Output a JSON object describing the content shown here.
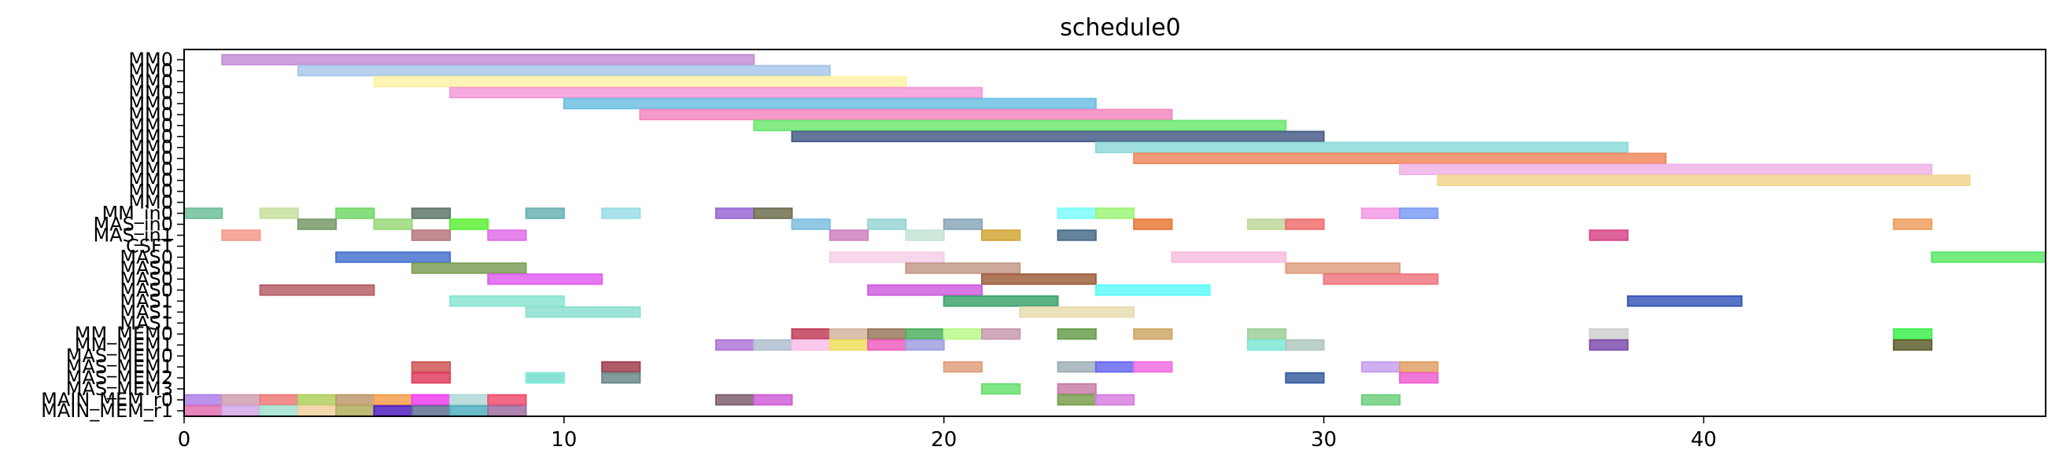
{
  "chart_data": {
    "type": "gantt",
    "title": "schedule0",
    "xlim": [
      0,
      49
    ],
    "xticks": [
      0,
      10,
      20,
      30,
      40
    ],
    "grid": false,
    "rows": [
      "MM0",
      "MM0",
      "MM0",
      "MM0",
      "MM0",
      "MM0",
      "MM0",
      "MM0",
      "MM0",
      "MM0",
      "MM0",
      "MM0",
      "MM0",
      "MM0",
      "MM_in0",
      "MAS_in0",
      "MAS_in1",
      "CSFT",
      "MAS0",
      "MAS0",
      "MAS0",
      "MAS0",
      "MAS1",
      "MAS1",
      "MAS1",
      "MM_MEM0",
      "MM_MEM1",
      "MAS_MEM0",
      "MAS_MEM1",
      "MAS_MEM2",
      "MAS_MEM3",
      "MAIN_MEM_r0",
      "MAIN_MEM_r1"
    ],
    "bars": [
      {
        "row": 0,
        "start": 1,
        "end": 15,
        "color": "#c58fd6"
      },
      {
        "row": 1,
        "start": 3,
        "end": 17,
        "color": "#a9c8ea"
      },
      {
        "row": 2,
        "start": 5,
        "end": 19,
        "color": "#fff2a8"
      },
      {
        "row": 3,
        "start": 7,
        "end": 21,
        "color": "#f59ad8"
      },
      {
        "row": 4,
        "start": 10,
        "end": 24,
        "color": "#6ec1e4"
      },
      {
        "row": 5,
        "start": 12,
        "end": 26,
        "color": "#f58ac0"
      },
      {
        "row": 6,
        "start": 15,
        "end": 29,
        "color": "#6ee870"
      },
      {
        "row": 7,
        "start": 16,
        "end": 30,
        "color": "#4a5e8a"
      },
      {
        "row": 8,
        "start": 24,
        "end": 38,
        "color": "#8fd9d9"
      },
      {
        "row": 9,
        "start": 25,
        "end": 39,
        "color": "#f08a60"
      },
      {
        "row": 10,
        "start": 32,
        "end": 46,
        "color": "#f0b4e8"
      },
      {
        "row": 11,
        "start": 33,
        "end": 47,
        "color": "#f3d590"
      },
      {
        "row": 14,
        "start": 0,
        "end": 1,
        "color": "#6fbf9a"
      },
      {
        "row": 14,
        "start": 2,
        "end": 3,
        "color": "#c8e2a0"
      },
      {
        "row": 14,
        "start": 4,
        "end": 5,
        "color": "#74d96a"
      },
      {
        "row": 14,
        "start": 6,
        "end": 7,
        "color": "#607868"
      },
      {
        "row": 14,
        "start": 9,
        "end": 10,
        "color": "#6ab4b4"
      },
      {
        "row": 14,
        "start": 11,
        "end": 12,
        "color": "#9adde6"
      },
      {
        "row": 14,
        "start": 14,
        "end": 15,
        "color": "#9a6ad6"
      },
      {
        "row": 14,
        "start": 15,
        "end": 16,
        "color": "#707050"
      },
      {
        "row": 14,
        "start": 23,
        "end": 24,
        "color": "#7efcfc"
      },
      {
        "row": 14,
        "start": 24,
        "end": 25,
        "color": "#9ef57a"
      },
      {
        "row": 14,
        "start": 31,
        "end": 32,
        "color": "#f59ae6"
      },
      {
        "row": 14,
        "start": 32,
        "end": 33,
        "color": "#7e9cf2"
      },
      {
        "row": 15,
        "start": 3,
        "end": 4,
        "color": "#7a9a6a"
      },
      {
        "row": 15,
        "start": 5,
        "end": 6,
        "color": "#9ad97a"
      },
      {
        "row": 15,
        "start": 7,
        "end": 8,
        "color": "#5ef03a"
      },
      {
        "row": 15,
        "start": 16,
        "end": 17,
        "color": "#7ec0e0"
      },
      {
        "row": 15,
        "start": 18,
        "end": 19,
        "color": "#9ad6d6"
      },
      {
        "row": 15,
        "start": 20,
        "end": 21,
        "color": "#8aa8b8"
      },
      {
        "row": 15,
        "start": 25,
        "end": 26,
        "color": "#ea7a3a"
      },
      {
        "row": 15,
        "start": 28,
        "end": 29,
        "color": "#c0d89a"
      },
      {
        "row": 15,
        "start": 29,
        "end": 30,
        "color": "#f07070"
      },
      {
        "row": 15,
        "start": 45,
        "end": 46,
        "color": "#f0a060"
      },
      {
        "row": 16,
        "start": 1,
        "end": 2,
        "color": "#f59a8a"
      },
      {
        "row": 16,
        "start": 6,
        "end": 7,
        "color": "#b87a80"
      },
      {
        "row": 16,
        "start": 8,
        "end": 9,
        "color": "#e070e8"
      },
      {
        "row": 16,
        "start": 17,
        "end": 18,
        "color": "#d084c0"
      },
      {
        "row": 16,
        "start": 19,
        "end": 20,
        "color": "#c4e4d4"
      },
      {
        "row": 16,
        "start": 21,
        "end": 22,
        "color": "#d4a838"
      },
      {
        "row": 16,
        "start": 23,
        "end": 24,
        "color": "#4a6e8a"
      },
      {
        "row": 16,
        "start": 37,
        "end": 38,
        "color": "#d84a8a"
      },
      {
        "row": 18,
        "start": 4,
        "end": 7,
        "color": "#4a74d0"
      },
      {
        "row": 18,
        "start": 17,
        "end": 20,
        "color": "#f4d0e8"
      },
      {
        "row": 18,
        "start": 26,
        "end": 29,
        "color": "#f8bee0"
      },
      {
        "row": 18,
        "start": 46,
        "end": 49,
        "color": "#5ee86a"
      },
      {
        "row": 19,
        "start": 6,
        "end": 9,
        "color": "#7ea05a"
      },
      {
        "row": 19,
        "start": 19,
        "end": 22,
        "color": "#c49a8a"
      },
      {
        "row": 19,
        "start": 29,
        "end": 32,
        "color": "#e0a080"
      },
      {
        "row": 20,
        "start": 8,
        "end": 11,
        "color": "#e060f0"
      },
      {
        "row": 20,
        "start": 21,
        "end": 24,
        "color": "#a06040"
      },
      {
        "row": 20,
        "start": 30,
        "end": 33,
        "color": "#f07880"
      },
      {
        "row": 21,
        "start": 2,
        "end": 5,
        "color": "#b8606a"
      },
      {
        "row": 21,
        "start": 18,
        "end": 21,
        "color": "#d060e0"
      },
      {
        "row": 21,
        "start": 24,
        "end": 27,
        "color": "#60fafa"
      },
      {
        "row": 22,
        "start": 7,
        "end": 10,
        "color": "#8ae6d0"
      },
      {
        "row": 22,
        "start": 20,
        "end": 23,
        "color": "#40a470"
      },
      {
        "row": 22,
        "start": 38,
        "end": 41,
        "color": "#3a5ab8"
      },
      {
        "row": 23,
        "start": 9,
        "end": 12,
        "color": "#8ee0d0"
      },
      {
        "row": 23,
        "start": 22,
        "end": 25,
        "color": "#e8dcb0"
      },
      {
        "row": 25,
        "start": 16,
        "end": 17,
        "color": "#c0405a"
      },
      {
        "row": 25,
        "start": 17,
        "end": 18,
        "color": "#d4b8a0"
      },
      {
        "row": 25,
        "start": 18,
        "end": 19,
        "color": "#9a7a60"
      },
      {
        "row": 25,
        "start": 19,
        "end": 20,
        "color": "#50b060"
      },
      {
        "row": 25,
        "start": 20,
        "end": 21,
        "color": "#bcfa8a"
      },
      {
        "row": 25,
        "start": 21,
        "end": 22,
        "color": "#c89ab0"
      },
      {
        "row": 25,
        "start": 23,
        "end": 24,
        "color": "#6aa050"
      },
      {
        "row": 25,
        "start": 25,
        "end": 26,
        "color": "#d0a868"
      },
      {
        "row": 25,
        "start": 28,
        "end": 29,
        "color": "#a0d09a"
      },
      {
        "row": 25,
        "start": 37,
        "end": 38,
        "color": "#d0d0d0"
      },
      {
        "row": 25,
        "start": 45,
        "end": 46,
        "color": "#40f050"
      },
      {
        "row": 26,
        "start": 14,
        "end": 15,
        "color": "#b078d8"
      },
      {
        "row": 26,
        "start": 15,
        "end": 16,
        "color": "#b0c0d0"
      },
      {
        "row": 26,
        "start": 16,
        "end": 17,
        "color": "#fac0e8"
      },
      {
        "row": 26,
        "start": 17,
        "end": 18,
        "color": "#f0e060"
      },
      {
        "row": 26,
        "start": 18,
        "end": 19,
        "color": "#f060c0"
      },
      {
        "row": 26,
        "start": 19,
        "end": 20,
        "color": "#a0a0e0"
      },
      {
        "row": 26,
        "start": 28,
        "end": 29,
        "color": "#80e8d8"
      },
      {
        "row": 26,
        "start": 29,
        "end": 30,
        "color": "#b0c8c0"
      },
      {
        "row": 26,
        "start": 37,
        "end": 38,
        "color": "#8050b0"
      },
      {
        "row": 26,
        "start": 45,
        "end": 46,
        "color": "#606030"
      },
      {
        "row": 28,
        "start": 6,
        "end": 7,
        "color": "#d05858"
      },
      {
        "row": 28,
        "start": 11,
        "end": 12,
        "color": "#a04050"
      },
      {
        "row": 28,
        "start": 20,
        "end": 21,
        "color": "#e0a080"
      },
      {
        "row": 28,
        "start": 23,
        "end": 24,
        "color": "#a0b0b8"
      },
      {
        "row": 28,
        "start": 24,
        "end": 25,
        "color": "#6a6af0"
      },
      {
        "row": 28,
        "start": 25,
        "end": 26,
        "color": "#f070e0"
      },
      {
        "row": 28,
        "start": 31,
        "end": 32,
        "color": "#c8a0f0"
      },
      {
        "row": 28,
        "start": 32,
        "end": 33,
        "color": "#e0a068"
      },
      {
        "row": 29,
        "start": 6,
        "end": 7,
        "color": "#e04060"
      },
      {
        "row": 29,
        "start": 9,
        "end": 10,
        "color": "#a08060"
      },
      {
        "row": 29,
        "start": 11,
        "end": 12,
        "color": "#6a8a88"
      },
      {
        "row": 29,
        "start": 29,
        "end": 30,
        "color": "#3a60a0"
      },
      {
        "row": 29,
        "start": 32,
        "end": 33,
        "color": "#f060d0"
      },
      {
        "row": 29,
        "start": 9,
        "end": 10,
        "color": "#80f0e0"
      },
      {
        "row": 30,
        "start": 21,
        "end": 22,
        "color": "#6ae070"
      },
      {
        "row": 30,
        "start": 23,
        "end": 24,
        "color": "#c880a8"
      },
      {
        "row": 31,
        "start": 0,
        "end": 1,
        "color": "#b080e8"
      },
      {
        "row": 31,
        "start": 1,
        "end": 2,
        "color": "#d0a0b0"
      },
      {
        "row": 31,
        "start": 2,
        "end": 3,
        "color": "#f07a7a"
      },
      {
        "row": 31,
        "start": 3,
        "end": 4,
        "color": "#b0d060"
      },
      {
        "row": 31,
        "start": 4,
        "end": 5,
        "color": "#c09a70"
      },
      {
        "row": 31,
        "start": 5,
        "end": 6,
        "color": "#f5a050"
      },
      {
        "row": 31,
        "start": 6,
        "end": 7,
        "color": "#f040f0"
      },
      {
        "row": 31,
        "start": 7,
        "end": 8,
        "color": "#b0d8d8"
      },
      {
        "row": 31,
        "start": 8,
        "end": 9,
        "color": "#f05070"
      },
      {
        "row": 31,
        "start": 14,
        "end": 15,
        "color": "#806070"
      },
      {
        "row": 31,
        "start": 15,
        "end": 16,
        "color": "#d060d8"
      },
      {
        "row": 31,
        "start": 23,
        "end": 24,
        "color": "#7aa050"
      },
      {
        "row": 31,
        "start": 24,
        "end": 25,
        "color": "#d880e0"
      },
      {
        "row": 31,
        "start": 31,
        "end": 32,
        "color": "#70d080"
      },
      {
        "row": 32,
        "start": 0,
        "end": 1,
        "color": "#e070b0"
      },
      {
        "row": 32,
        "start": 1,
        "end": 2,
        "color": "#d4a8e8"
      },
      {
        "row": 32,
        "start": 2,
        "end": 3,
        "color": "#a0e0d0"
      },
      {
        "row": 32,
        "start": 3,
        "end": 4,
        "color": "#f0d0a0"
      },
      {
        "row": 32,
        "start": 4,
        "end": 5,
        "color": "#b0b060"
      },
      {
        "row": 32,
        "start": 5,
        "end": 6,
        "color": "#5020c0"
      },
      {
        "row": 32,
        "start": 6,
        "end": 7,
        "color": "#607090"
      },
      {
        "row": 32,
        "start": 7,
        "end": 8,
        "color": "#50b0c0"
      },
      {
        "row": 32,
        "start": 8,
        "end": 9,
        "color": "#a070a0"
      }
    ]
  }
}
